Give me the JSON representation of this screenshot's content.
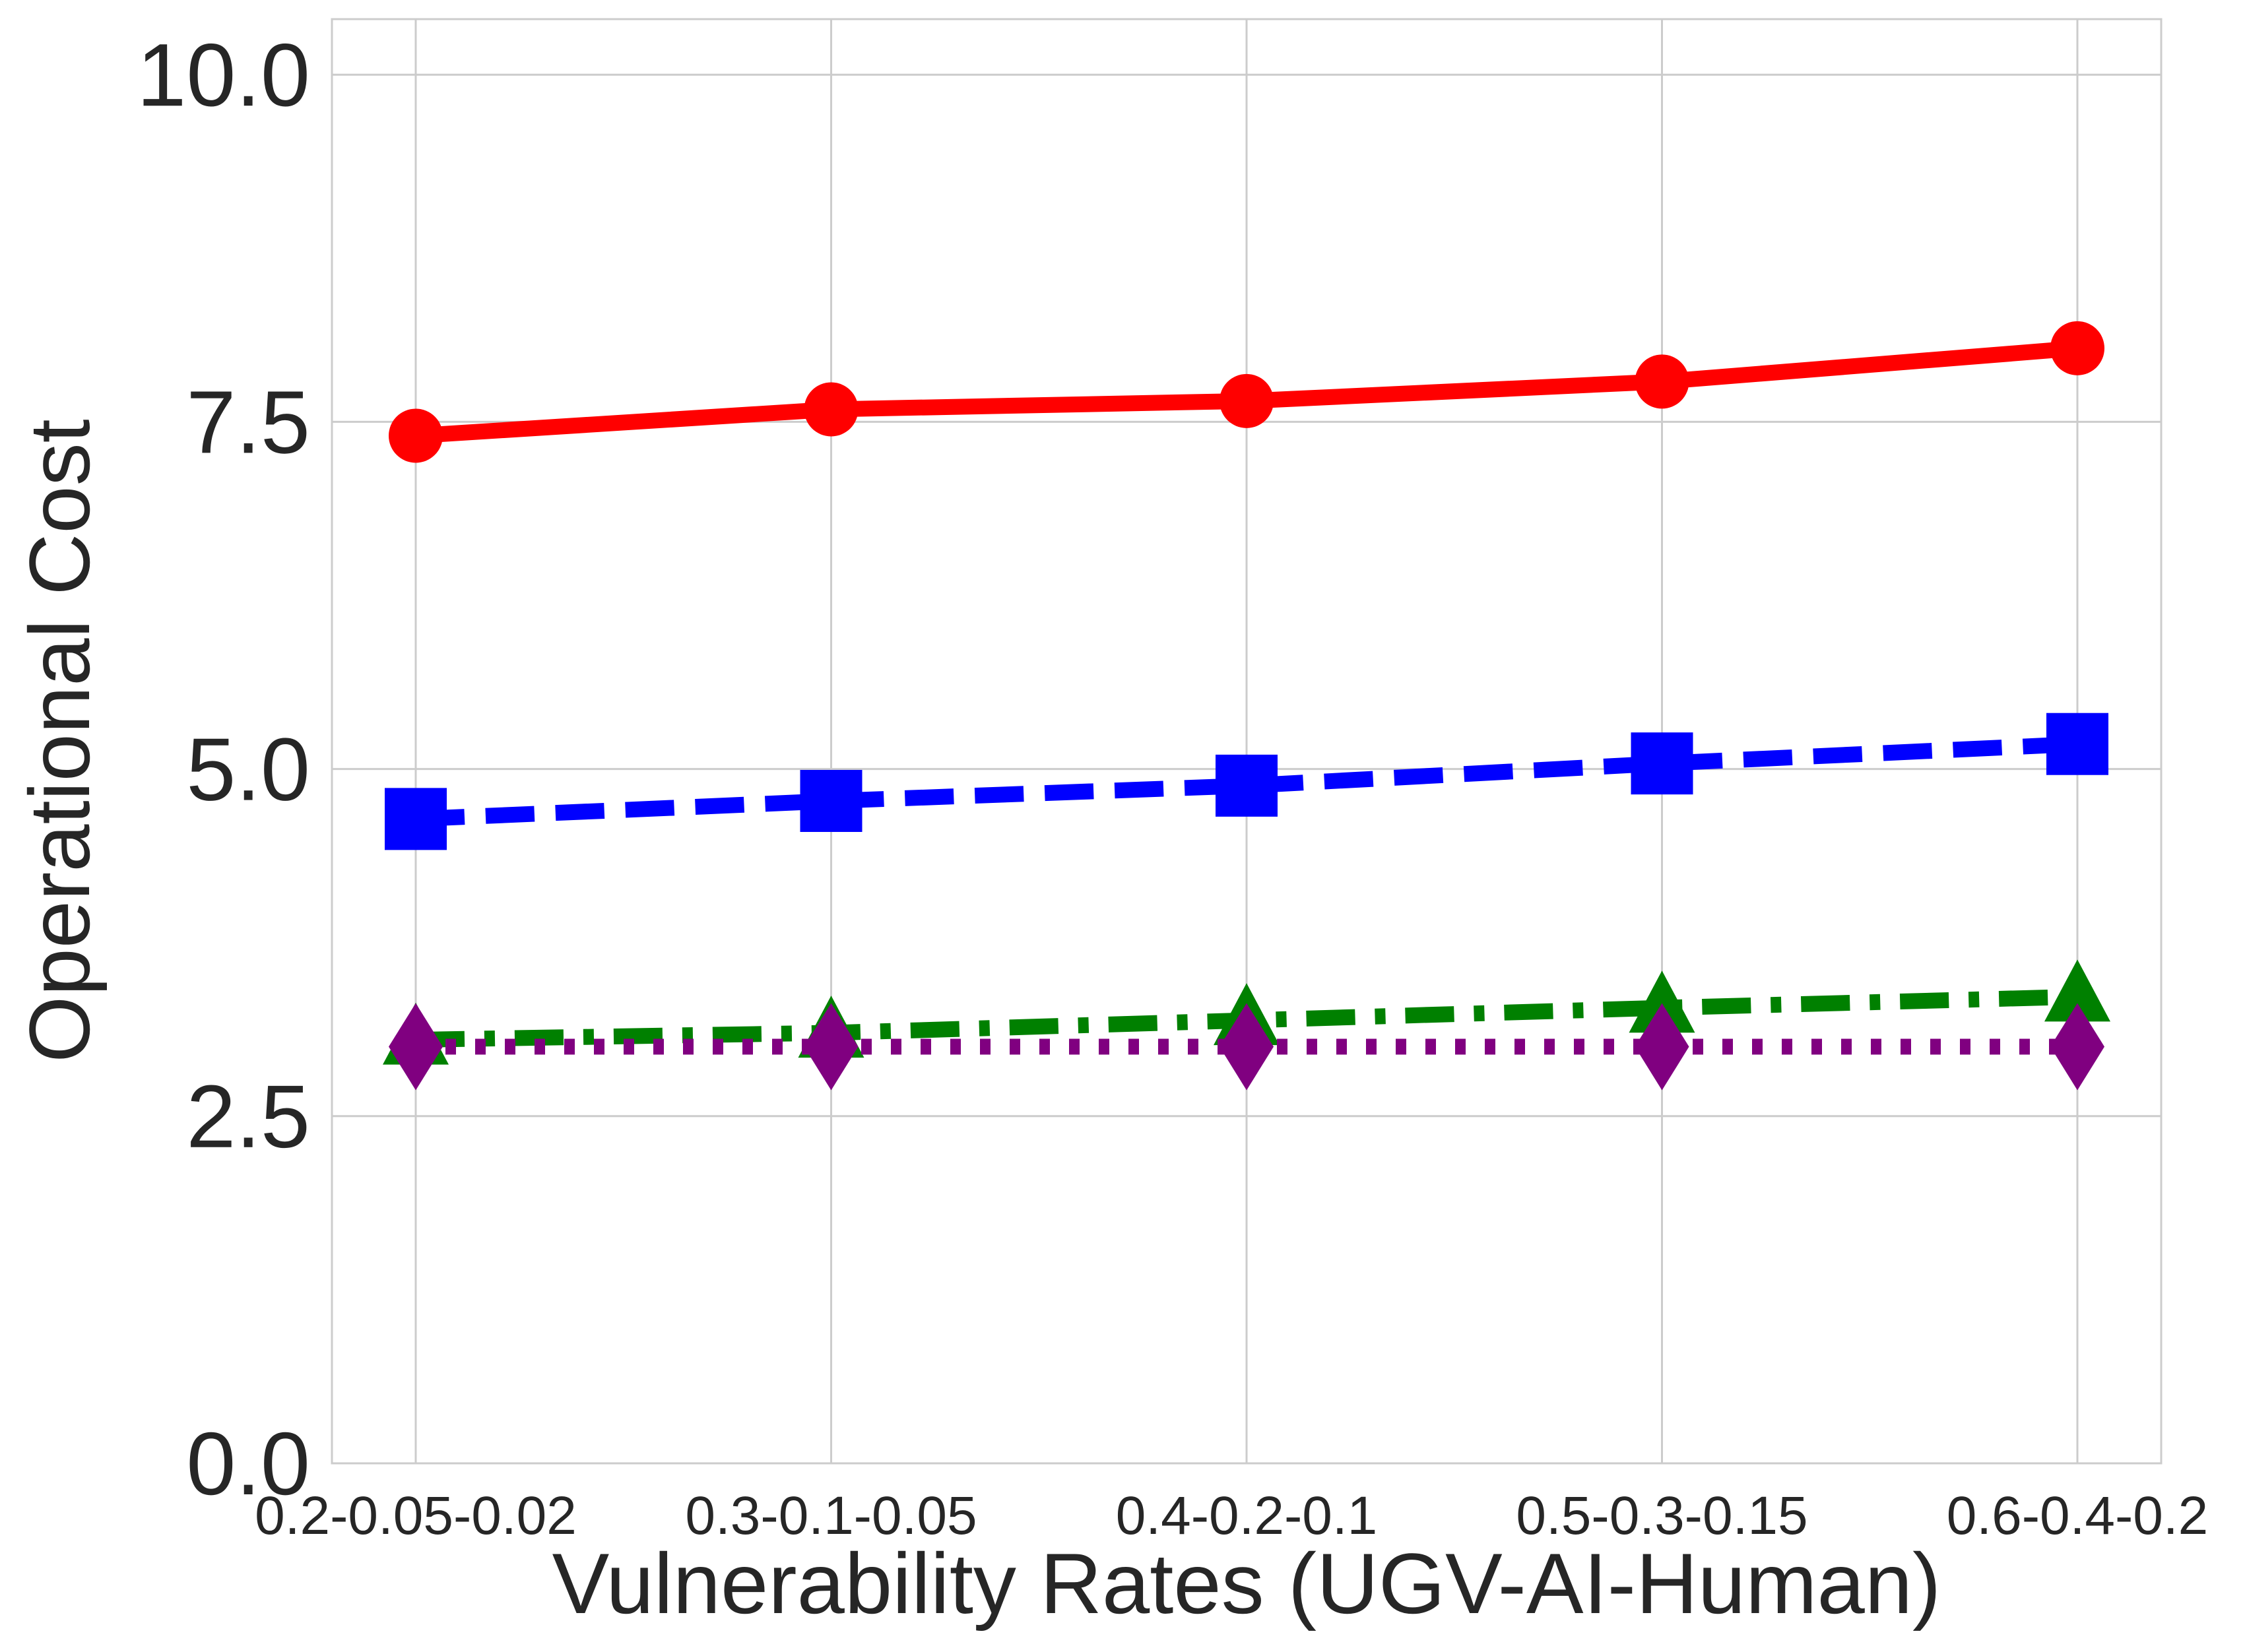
{
  "chart_data": {
    "type": "line",
    "title": "",
    "xlabel": "Vulnerability Rates (UGV-AI-Human)",
    "ylabel": "Operational Cost",
    "categories": [
      "0.2-0.05-0.02",
      "0.3-0.1-0.05",
      "0.4-0.2-0.1",
      "0.5-0.3-0.15",
      "0.6-0.4-0.2"
    ],
    "ylim": [
      0,
      10.4
    ],
    "yticks": [
      0.0,
      2.5,
      5.0,
      7.5,
      10.0
    ],
    "ytick_labels": [
      "0.0",
      "2.5",
      "5.0",
      "7.5",
      "10.0"
    ],
    "grid": true,
    "legend": "none",
    "series": [
      {
        "values": [
          7.4,
          7.59,
          7.65,
          7.79,
          8.03
        ],
        "color": "#ff0000",
        "line_style": "solid",
        "marker": "circle"
      },
      {
        "values": [
          4.64,
          4.77,
          4.88,
          5.04,
          5.18
        ],
        "color": "#0000ff",
        "line_style": "dashed",
        "marker": "square"
      },
      {
        "values": [
          3.05,
          3.1,
          3.19,
          3.28,
          3.36
        ],
        "color": "#008000",
        "line_style": "dashdot",
        "marker": "triangle"
      },
      {
        "values": [
          3.0,
          3.0,
          3.0,
          3.0,
          3.0
        ],
        "color": "#800080",
        "line_style": "dotted",
        "marker": "diamond"
      }
    ]
  }
}
